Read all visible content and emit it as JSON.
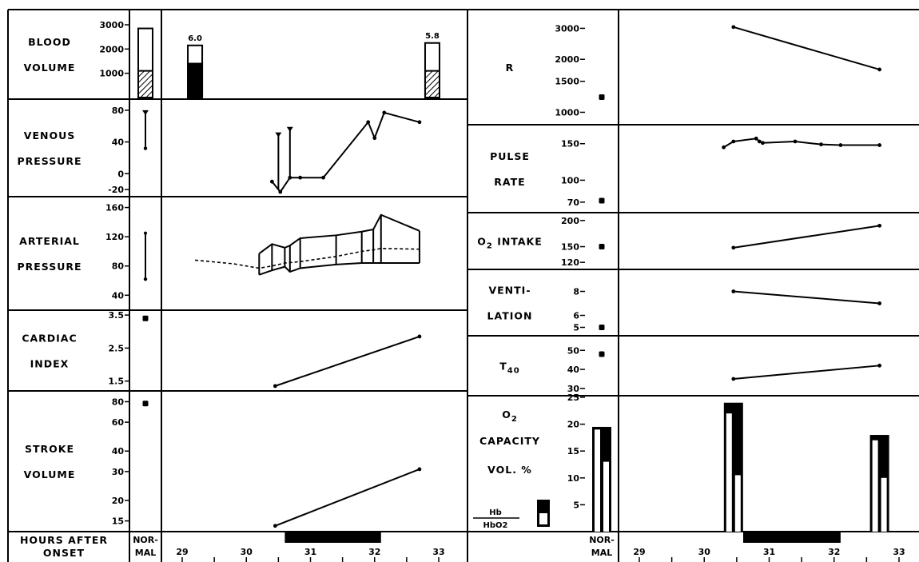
{
  "x_axis": {
    "title_lines": [
      "HOURS AFTER",
      "ONSET"
    ],
    "normal_lines": [
      "NOR-",
      "MAL"
    ],
    "ticks": [
      29,
      30,
      31,
      32,
      33
    ],
    "bar": [
      30.6,
      32.1
    ],
    "tick_marks": [
      29,
      29.5,
      30,
      30.5,
      31,
      31.5,
      32,
      32.5,
      33
    ]
  },
  "legend": {
    "line1": "Hb",
    "line2": "HbO2"
  },
  "chart_data": [
    {
      "id": "blood_volume",
      "type": "bar",
      "side": "left",
      "label_lines": [
        "BLOOD",
        "VOLUME"
      ],
      "ylim": [
        0,
        3000
      ],
      "yticks": [
        1000,
        2000,
        3000
      ],
      "normal": {
        "total": 2850,
        "hatched": 1100
      },
      "bars": [
        {
          "x": 29.2,
          "total": 2150,
          "filled": 1400,
          "label": "6.0"
        },
        {
          "x": 32.9,
          "total": 2250,
          "filled": 1100,
          "label": "5.8"
        }
      ]
    },
    {
      "id": "venous_pressure",
      "type": "line",
      "side": "left",
      "label_lines": [
        "VENOUS",
        "PRESSURE"
      ],
      "ylim": [
        -30,
        90
      ],
      "yticks": [
        -20,
        0,
        40,
        80
      ],
      "normal": {
        "type": "range",
        "low": 32,
        "high": 78
      },
      "lines": [
        {
          "x": [
            30.4,
            30.53,
            30.68,
            30.84,
            31.2,
            31.9,
            32.0,
            32.15,
            32.7
          ],
          "y": [
            -10,
            -23,
            -5,
            -5,
            -5,
            65,
            45,
            77,
            65
          ]
        }
      ],
      "spikes": [
        {
          "x": 30.5,
          "base": -20,
          "top": 50
        },
        {
          "x": 30.68,
          "base": -5,
          "top": 57
        }
      ]
    },
    {
      "id": "arterial_pressure",
      "type": "line",
      "side": "left",
      "label_lines": [
        "ARTERIAL",
        "PRESSURE"
      ],
      "ylim": [
        25,
        165
      ],
      "yticks": [
        40,
        80,
        120,
        160
      ],
      "normal": {
        "type": "range",
        "low": 62,
        "high": 125
      },
      "mean_dashed": {
        "x": [
          29.2,
          29.8,
          30.2,
          30.4,
          30.6,
          30.84,
          31.4,
          31.8,
          31.98,
          32.1,
          32.7
        ],
        "y": [
          88,
          83,
          77,
          80,
          84,
          86,
          93,
          100,
          102,
          104,
          103
        ]
      },
      "systolic": {
        "x": [
          30.2,
          30.4,
          30.6,
          30.68,
          30.84,
          31.4,
          31.8,
          31.98,
          32.1,
          32.7
        ],
        "y": [
          97,
          110,
          105,
          108,
          118,
          122,
          127,
          130,
          150,
          128
        ]
      },
      "diastolic": {
        "x": [
          30.2,
          30.4,
          30.6,
          30.68,
          30.84,
          31.4,
          31.8,
          31.98,
          32.1,
          32.7
        ],
        "y": [
          68,
          74,
          79,
          72,
          77,
          82,
          84,
          84,
          84,
          84
        ]
      },
      "verticals": [
        30.2,
        30.4,
        30.6,
        30.68,
        30.84,
        31.4,
        31.8,
        31.98,
        32.1,
        32.7
      ]
    },
    {
      "id": "cardiac_index",
      "type": "line",
      "side": "left",
      "label_lines": [
        "CARDIAC",
        "INDEX"
      ],
      "ylim": [
        1.25,
        3.6
      ],
      "yticks": [
        1.5,
        2.5,
        3.5
      ],
      "ytick_labels": [
        "1.5",
        "2.5",
        "3.5"
      ],
      "normal": {
        "type": "point",
        "value": 3.4
      },
      "lines": [
        {
          "x": [
            30.45,
            32.7
          ],
          "y": [
            1.35,
            2.85
          ]
        }
      ]
    },
    {
      "id": "stroke_volume",
      "type": "line",
      "side": "left",
      "scale": "log",
      "label_lines": [
        "STROKE",
        "VOLUME"
      ],
      "ylim": [
        13.5,
        90
      ],
      "yticks": [
        15,
        20,
        30,
        40,
        60,
        80
      ],
      "normal": {
        "type": "point",
        "value": 78
      },
      "lines": [
        {
          "x": [
            30.45,
            32.7
          ],
          "y": [
            14,
            31
          ]
        }
      ]
    },
    {
      "id": "r",
      "type": "line",
      "side": "right",
      "scale": "log",
      "label_lines": [
        "R"
      ],
      "ylim": [
        850,
        3600
      ],
      "yticks": [
        1000,
        1500,
        2000,
        3000
      ],
      "normal": {
        "type": "point",
        "value": 1220
      },
      "lines": [
        {
          "x": [
            30.45,
            32.7
          ],
          "y": [
            3050,
            1750
          ]
        }
      ]
    },
    {
      "id": "pulse_rate",
      "type": "line",
      "side": "right",
      "label_lines": [
        "PULSE",
        "RATE"
      ],
      "ylim": [
        60,
        165
      ],
      "yticks": [
        70,
        100,
        150
      ],
      "normal": {
        "type": "point",
        "value": 72
      },
      "lines": [
        {
          "x": [
            30.3,
            30.45,
            30.8,
            30.85,
            30.9,
            31.4,
            31.8,
            32.1,
            32.7
          ],
          "y": [
            145,
            153,
            157,
            153,
            151,
            153,
            149,
            148,
            148
          ]
        }
      ]
    },
    {
      "id": "o2_intake",
      "type": "line",
      "side": "right",
      "label_html_sub": {
        "pre": "O",
        "sub": "2",
        "post": " INTAKE"
      },
      "ylim": [
        105,
        215
      ],
      "yticks": [
        120,
        150,
        200
      ],
      "normal": {
        "type": "point",
        "value": 150
      },
      "lines": [
        {
          "x": [
            30.45,
            32.7
          ],
          "y": [
            148,
            190
          ]
        }
      ]
    },
    {
      "id": "ventilation",
      "type": "line",
      "side": "right",
      "label_lines": [
        "VENTI-",
        "LATION"
      ],
      "ylim": [
        4.3,
        9.3
      ],
      "yticks": [
        5,
        6,
        8
      ],
      "normal": {
        "type": "point",
        "value": 5
      },
      "lines": [
        {
          "x": [
            30.45,
            32.7
          ],
          "y": [
            8,
            7
          ]
        }
      ]
    },
    {
      "id": "t40",
      "type": "line",
      "side": "right",
      "label_sub": {
        "pre": "T",
        "sub": "40"
      },
      "ylim": [
        27,
        56
      ],
      "yticks": [
        30,
        40,
        50
      ],
      "normal": {
        "type": "point",
        "value": 48
      },
      "lines": [
        {
          "x": [
            30.45,
            32.7
          ],
          "y": [
            35,
            42
          ]
        }
      ]
    },
    {
      "id": "o2_capacity",
      "type": "bar",
      "side": "right",
      "label_rows": [
        {
          "pre": "O",
          "sub": "2"
        },
        {
          "pre": "CAPACITY"
        },
        {
          "pre": "VOL. %"
        }
      ],
      "ylim": [
        0,
        25
      ],
      "yticks": [
        5,
        10,
        15,
        20,
        25
      ],
      "normal": {
        "total": 19.5,
        "hb": 19,
        "hbo2": 13
      },
      "bars": [
        {
          "x": 30.45,
          "total": 24,
          "hb": 22,
          "hbo2": 10.5
        },
        {
          "x": 32.7,
          "total": 18,
          "hb": 17,
          "hbo2": 10
        }
      ]
    }
  ]
}
